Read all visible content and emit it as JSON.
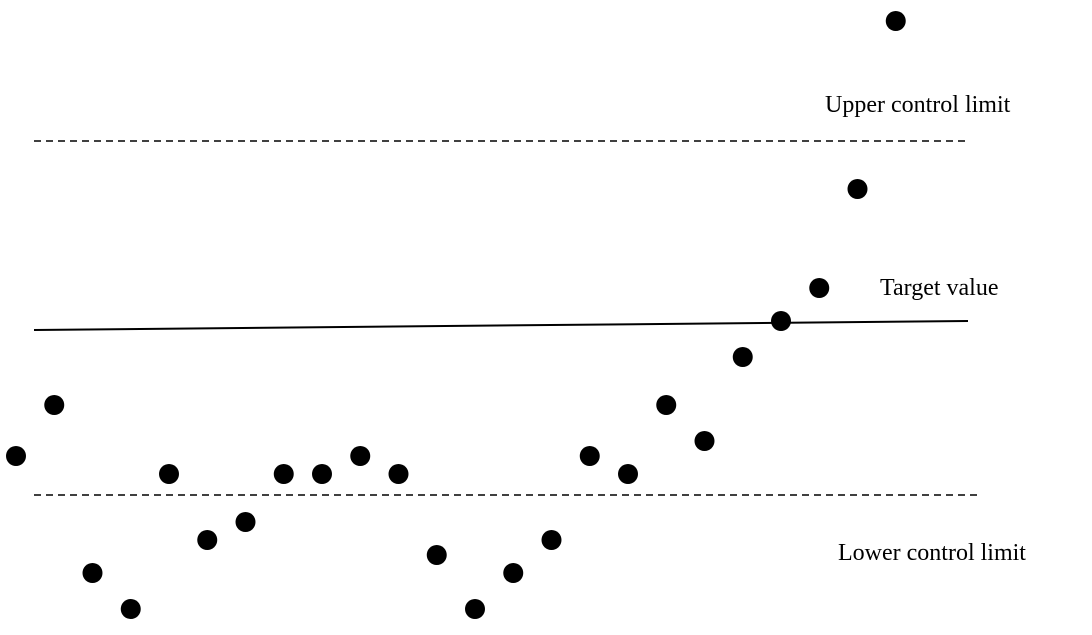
{
  "chart_data": {
    "type": "scatter",
    "title": "",
    "xlabel": "",
    "ylabel": "",
    "grid": false,
    "legend": "none",
    "ylim": [
      0,
      100
    ],
    "reference_lines": {
      "upper_control_limit": {
        "label": "Upper control limit",
        "value": 80,
        "style": "dashed"
      },
      "target_value": {
        "label": "Target value",
        "start": 48.5,
        "end": 50.0,
        "style": "solid"
      },
      "lower_control_limit": {
        "label": "Lower control limit",
        "value": 21,
        "style": "dashed"
      }
    },
    "series": [
      {
        "values": [
          {
            "x": 1,
            "y": 27.5
          },
          {
            "x": 2,
            "y": 36
          },
          {
            "x": 3,
            "y": 8
          },
          {
            "x": 4,
            "y": 2
          },
          {
            "x": 5,
            "y": 24.5
          },
          {
            "x": 6,
            "y": 13.5
          },
          {
            "x": 7,
            "y": 16.5
          },
          {
            "x": 8,
            "y": 24.5
          },
          {
            "x": 9,
            "y": 24.5
          },
          {
            "x": 10,
            "y": 27.5
          },
          {
            "x": 11,
            "y": 24.5
          },
          {
            "x": 12,
            "y": 11
          },
          {
            "x": 13,
            "y": 2
          },
          {
            "x": 14,
            "y": 8
          },
          {
            "x": 15,
            "y": 13.5
          },
          {
            "x": 16,
            "y": 27.5
          },
          {
            "x": 17,
            "y": 24.5
          },
          {
            "x": 18,
            "y": 36
          },
          {
            "x": 19,
            "y": 30
          },
          {
            "x": 20,
            "y": 44
          },
          {
            "x": 21,
            "y": 50
          },
          {
            "x": 22,
            "y": 55.5
          },
          {
            "x": 23,
            "y": 72
          },
          {
            "x": 24,
            "y": 100
          }
        ],
        "color": "#000000"
      }
    ]
  }
}
